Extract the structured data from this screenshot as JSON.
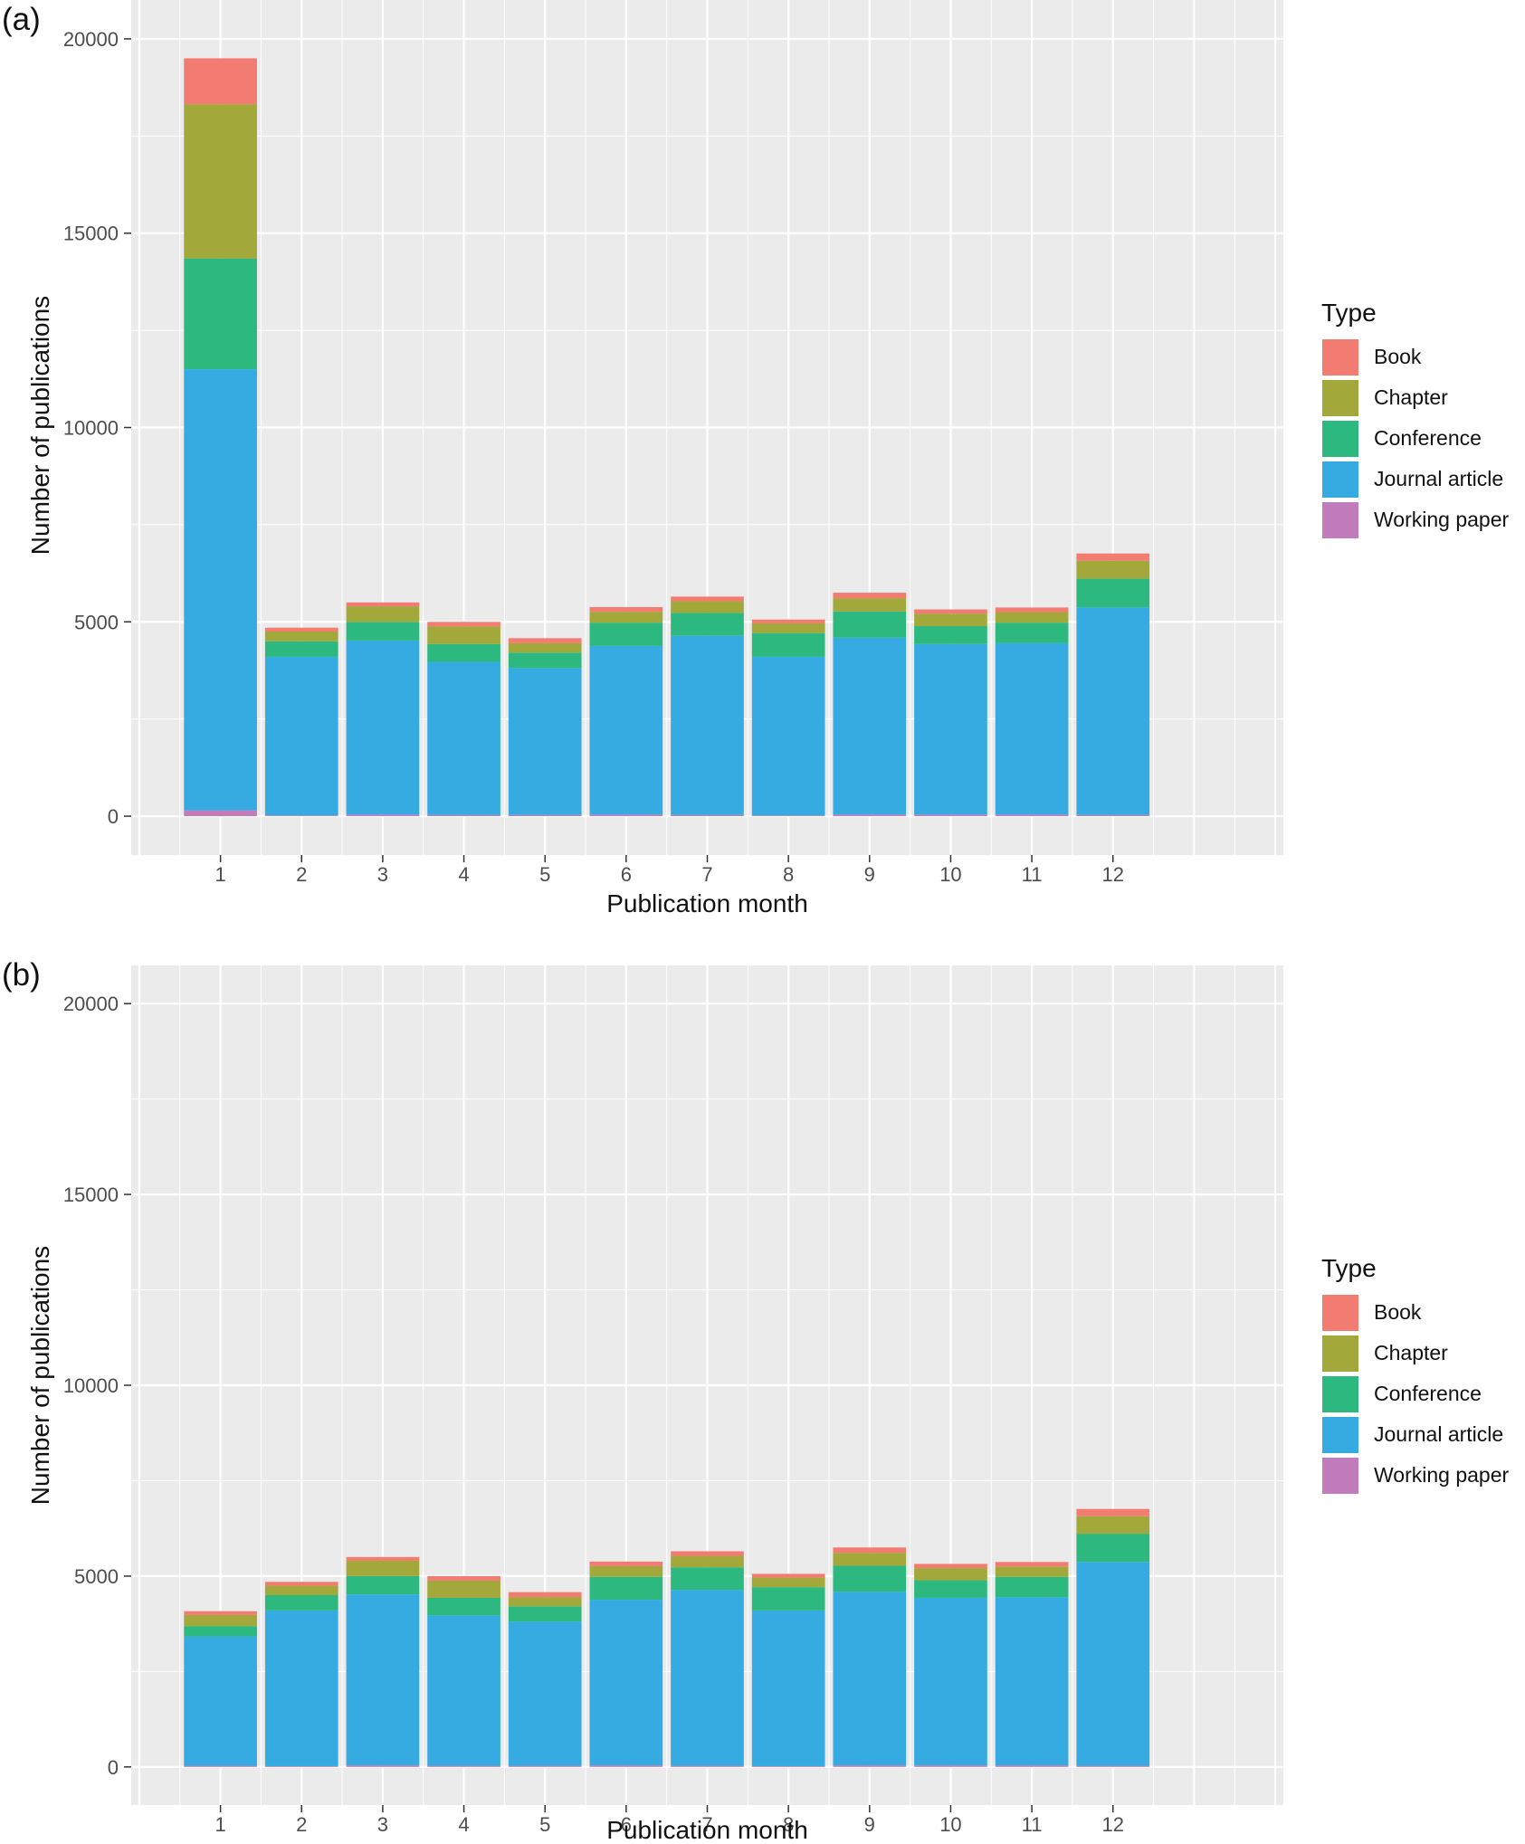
{
  "colors": {
    "Book": "#F37C72",
    "Chapter": "#A3A83A",
    "Conference": "#2DB87F",
    "Journal article": "#35ABE2",
    "Working paper": "#C27CBB",
    "panel_background": "#EBEBEB",
    "grid": "#FFFFFF"
  },
  "legend": {
    "title": "Type",
    "items": [
      "Book",
      "Chapter",
      "Conference",
      "Journal article",
      "Working paper"
    ]
  },
  "chart_data": [
    {
      "type": "bar",
      "stacked": true,
      "panel_label": "(a)",
      "xlabel": "Publication month",
      "ylabel": "Number of publications",
      "categories": [
        "1",
        "2",
        "3",
        "4",
        "5",
        "6",
        "7",
        "8",
        "9",
        "10",
        "11",
        "12"
      ],
      "ylim": [
        -1000,
        21000
      ],
      "yticks": [
        0,
        5000,
        10000,
        15000,
        20000
      ],
      "xlim": [
        -0.1,
        14.1
      ],
      "grid": true,
      "legend_position": "right",
      "series": [
        {
          "name": "Working paper",
          "values": [
            150,
            20,
            40,
            30,
            30,
            40,
            30,
            20,
            40,
            40,
            40,
            30
          ]
        },
        {
          "name": "Journal article",
          "values": [
            11350,
            4080,
            4480,
            3940,
            3780,
            4340,
            4610,
            4080,
            4550,
            4390,
            4410,
            5340
          ]
        },
        {
          "name": "Conference",
          "values": [
            2850,
            400,
            480,
            460,
            400,
            600,
            590,
            610,
            680,
            460,
            530,
            740
          ]
        },
        {
          "name": "Chapter",
          "values": [
            3970,
            250,
            400,
            450,
            240,
            280,
            300,
            250,
            340,
            320,
            270,
            460
          ]
        },
        {
          "name": "Book",
          "values": [
            1180,
            100,
            100,
            120,
            130,
            120,
            120,
            100,
            140,
            110,
            120,
            190
          ]
        }
      ]
    },
    {
      "type": "bar",
      "stacked": true,
      "panel_label": "(b)",
      "xlabel": "Publication month",
      "ylabel": "Number of publications",
      "categories": [
        "1",
        "2",
        "3",
        "4",
        "5",
        "6",
        "7",
        "8",
        "9",
        "10",
        "11",
        "12"
      ],
      "ylim": [
        -1000,
        21000
      ],
      "yticks": [
        0,
        5000,
        10000,
        15000,
        20000
      ],
      "xlim": [
        -0.1,
        14.1
      ],
      "grid": true,
      "legend_position": "right",
      "series": [
        {
          "name": "Working paper",
          "values": [
            30,
            20,
            40,
            30,
            30,
            40,
            30,
            20,
            40,
            40,
            40,
            30
          ]
        },
        {
          "name": "Journal article",
          "values": [
            3390,
            4080,
            4480,
            3940,
            3780,
            4340,
            4610,
            4080,
            4550,
            4390,
            4410,
            5340
          ]
        },
        {
          "name": "Conference",
          "values": [
            270,
            400,
            480,
            460,
            400,
            600,
            590,
            610,
            680,
            460,
            530,
            740
          ]
        },
        {
          "name": "Chapter",
          "values": [
            290,
            250,
            400,
            450,
            240,
            280,
            300,
            250,
            340,
            320,
            270,
            460
          ]
        },
        {
          "name": "Book",
          "values": [
            100,
            100,
            100,
            120,
            130,
            120,
            120,
            100,
            140,
            110,
            120,
            190
          ]
        }
      ]
    }
  ]
}
